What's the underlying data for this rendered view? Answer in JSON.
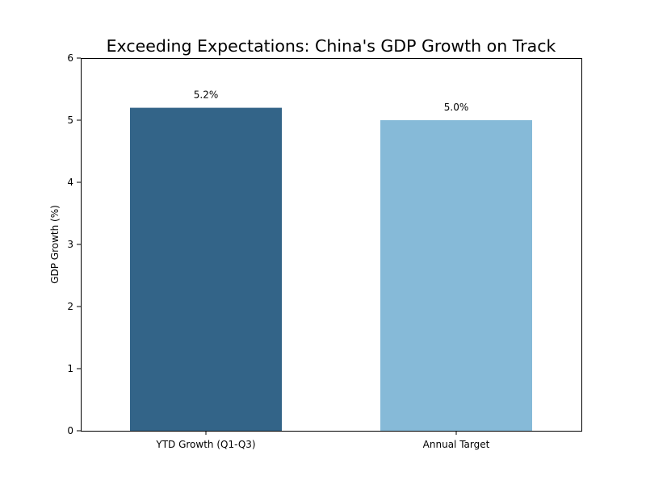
{
  "chart_data": {
    "type": "bar",
    "title": "Exceeding Expectations: China's GDP Growth on Track",
    "xlabel": "",
    "ylabel": "GDP Growth (%)",
    "categories": [
      "YTD Growth (Q1-Q3)",
      "Annual Target"
    ],
    "values": [
      5.2,
      5.0
    ],
    "data_labels": [
      "5.2%",
      "5.0%"
    ],
    "colors": [
      "#336488",
      "#86bad8"
    ],
    "ylim": [
      0,
      6
    ],
    "yticks": [
      0,
      1,
      2,
      3,
      4,
      5,
      6
    ],
    "grid": false,
    "legend": "none"
  }
}
